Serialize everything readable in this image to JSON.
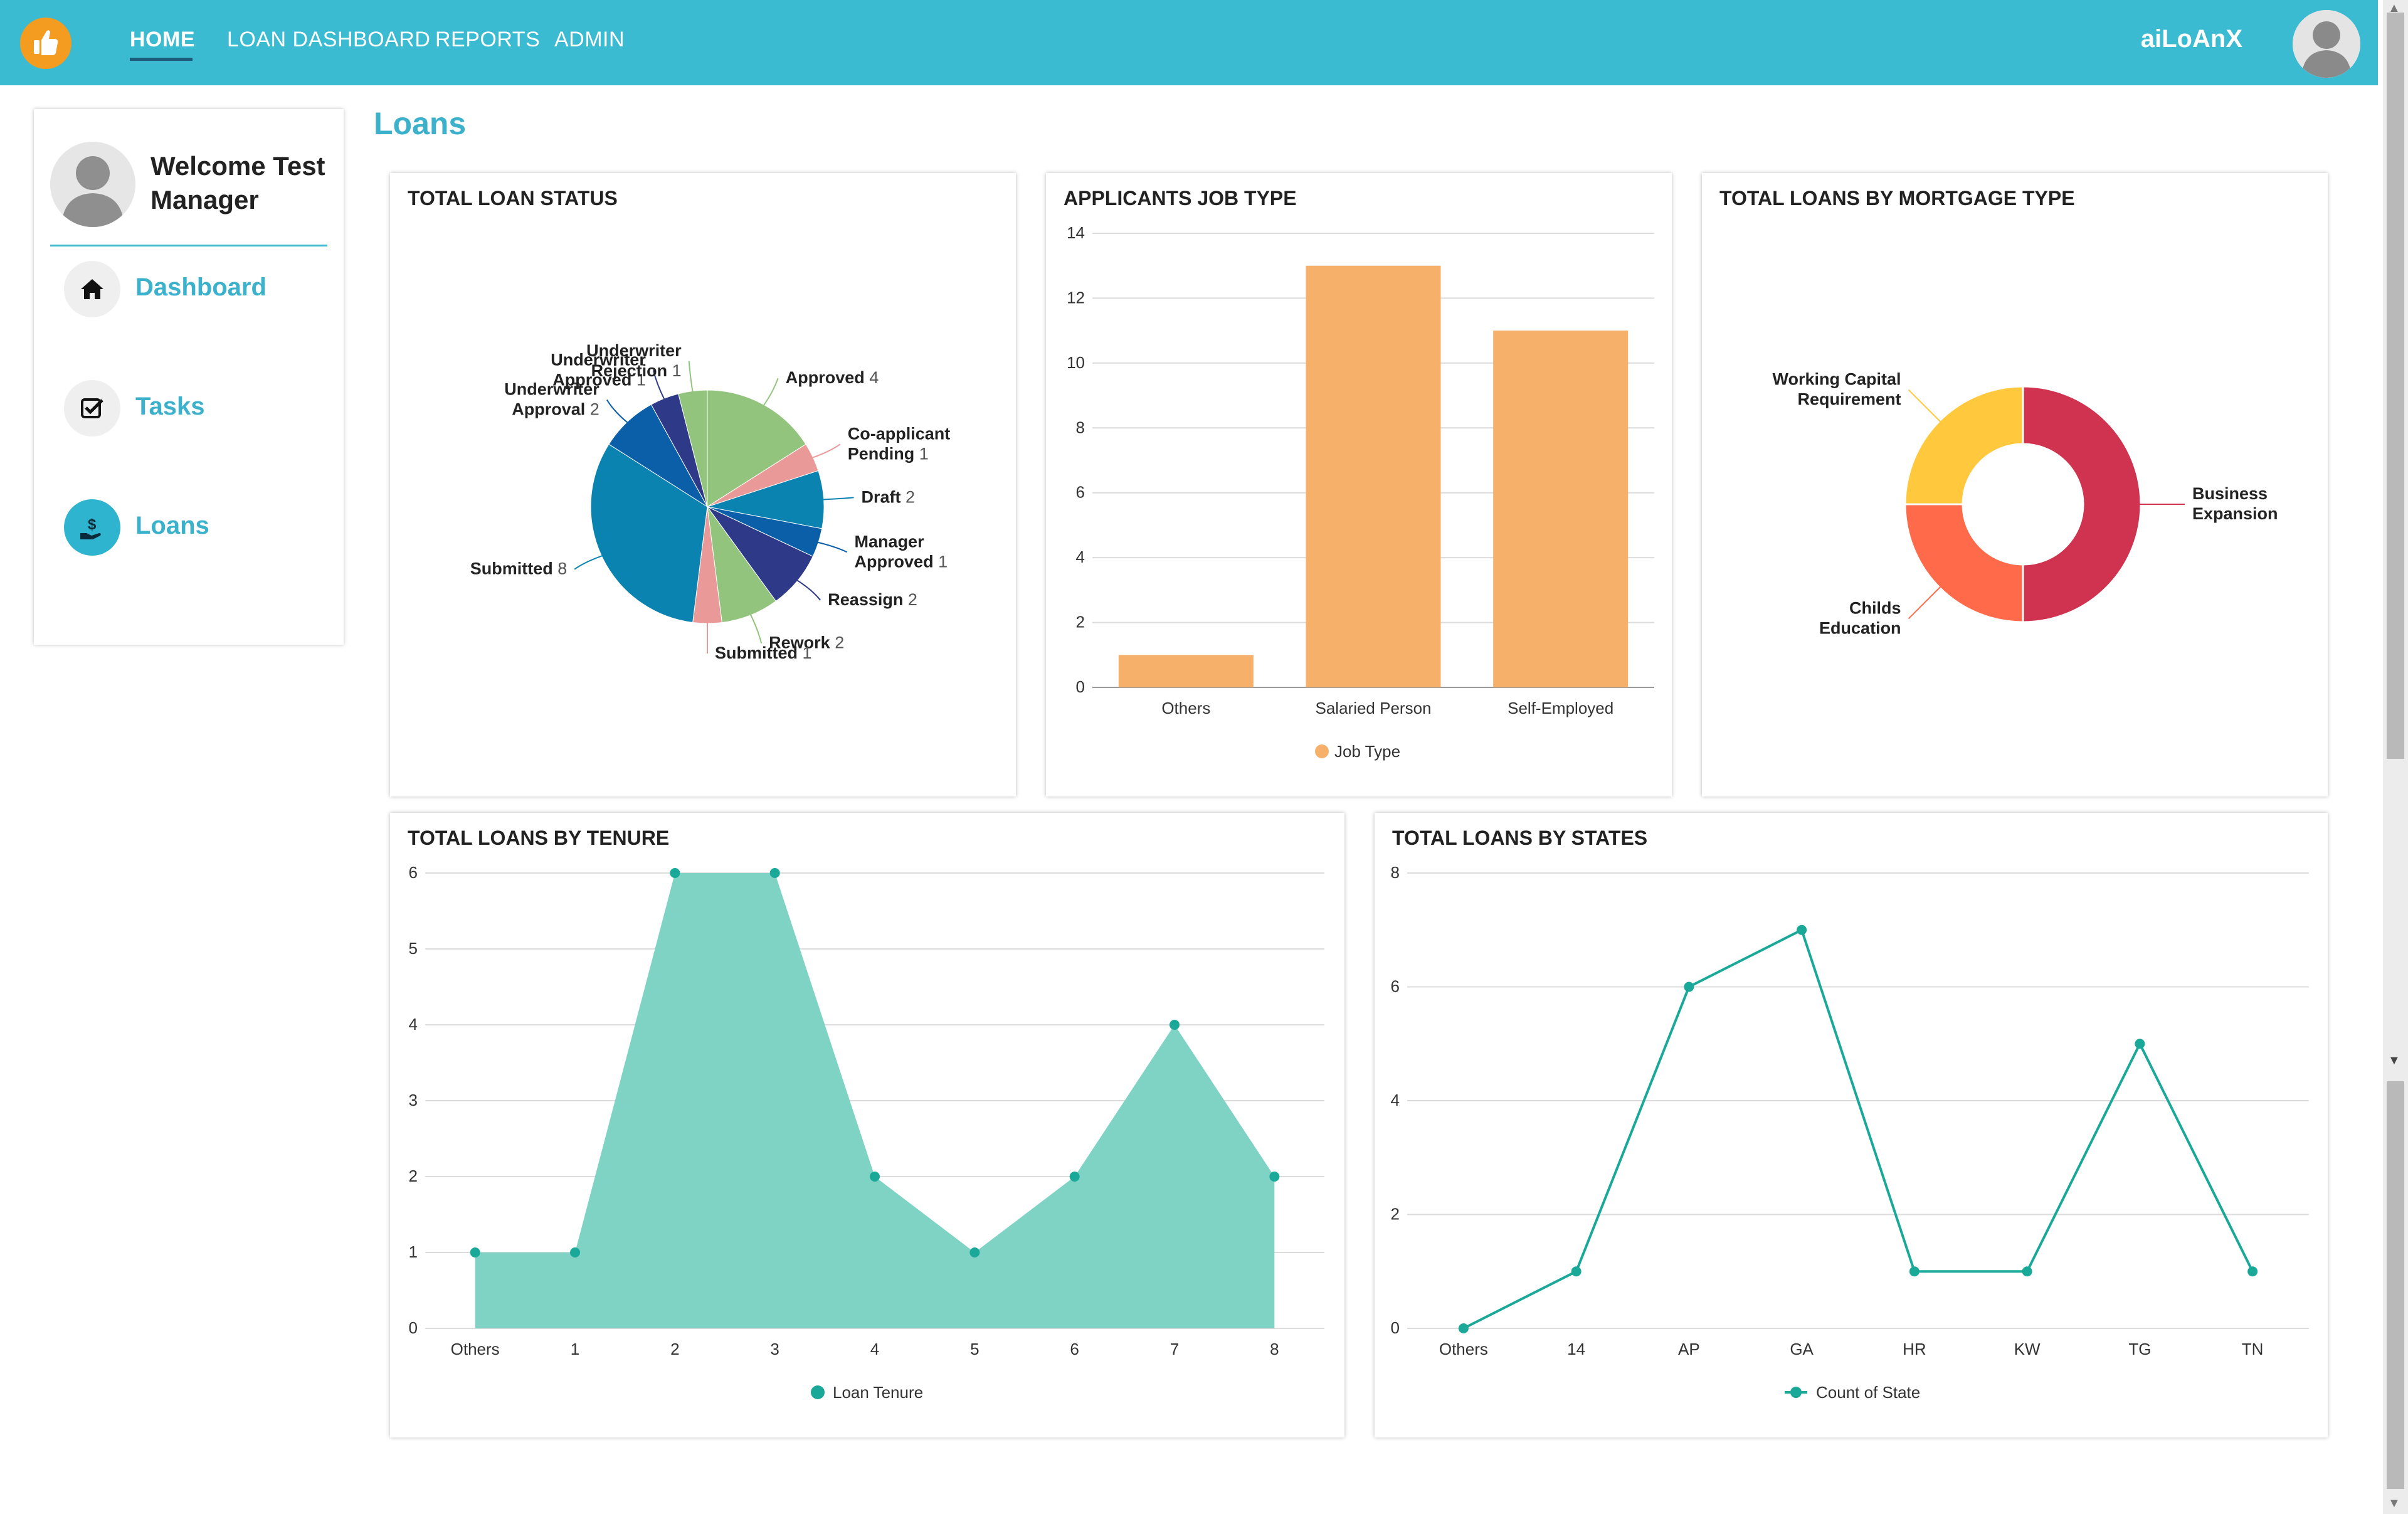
{
  "nav": {
    "items": [
      "HOME",
      "LOAN DASHBOARD",
      "REPORTS",
      "ADMIN"
    ],
    "brand": "aiLoAnX"
  },
  "sidebar": {
    "welcome": "Welcome Test Manager",
    "items": [
      {
        "label": "Dashboard",
        "icon": "home-icon"
      },
      {
        "label": "Tasks",
        "icon": "checkbox-icon"
      },
      {
        "label": "Loans",
        "icon": "hand-dollar-icon"
      }
    ]
  },
  "page": {
    "title": "Loans"
  },
  "colors": {
    "accent": "#3bbbd2",
    "logo": "#f39c1f",
    "teal": "#1aa999",
    "orange_bar": "#f6b06a"
  },
  "chart_data": [
    {
      "type": "pie",
      "title": "TOTAL LOAN STATUS",
      "slices": [
        {
          "label": "Approved",
          "value": 4,
          "color": "#93c47d"
        },
        {
          "label": "Co-applicant Pending",
          "value": 1,
          "color": "#ea9999"
        },
        {
          "label": "Draft",
          "value": 2,
          "color": "#0b83b0"
        },
        {
          "label": "Manager Approved",
          "value": 1,
          "color": "#0b5fa8"
        },
        {
          "label": "Reassign",
          "value": 2,
          "color": "#2e3a87"
        },
        {
          "label": "Rework",
          "value": 2,
          "color": "#93c47d"
        },
        {
          "label": "Submitted",
          "value": 1,
          "color": "#ea9999"
        },
        {
          "label": "Submitted",
          "value": 8,
          "color": "#0b83b0"
        },
        {
          "label": "Underwriter Approval",
          "value": 2,
          "color": "#0b5fa8"
        },
        {
          "label": "Underwriter Approved",
          "value": 1,
          "color": "#2e3a87"
        },
        {
          "label": "Underwriter Rejection",
          "value": 1,
          "color": "#93c47d"
        }
      ]
    },
    {
      "type": "bar",
      "title": "APPLICANTS JOB TYPE",
      "categories": [
        "Others",
        "Salaried Person",
        "Self-Employed"
      ],
      "series": [
        {
          "name": "Job Type",
          "values": [
            1,
            13,
            11
          ]
        }
      ],
      "ylim": [
        0,
        14
      ],
      "yticks": [
        0,
        2,
        4,
        6,
        8,
        10,
        12,
        14
      ],
      "grid": true,
      "legend": "bottom"
    },
    {
      "type": "pie",
      "subtype": "donut",
      "title": "TOTAL LOANS BY MORTGAGE TYPE",
      "slices": [
        {
          "label": "Business Expansion",
          "value": 50,
          "color": "#d0334f"
        },
        {
          "label": "Childs Education",
          "value": 25,
          "color": "#ff6b4a"
        },
        {
          "label": "Working Capital Requirement",
          "value": 25,
          "color": "#ffc83d"
        }
      ]
    },
    {
      "type": "area",
      "title": "TOTAL LOANS BY TENURE",
      "x": [
        "Others",
        "1",
        "2",
        "3",
        "4",
        "5",
        "6",
        "7",
        "8"
      ],
      "series": [
        {
          "name": "Loan Tenure",
          "values": [
            1,
            1,
            6,
            6,
            2,
            1,
            2,
            4,
            2
          ]
        }
      ],
      "ylim": [
        0,
        6
      ],
      "yticks": [
        0,
        1,
        2,
        3,
        4,
        5,
        6
      ],
      "grid": true,
      "legend": "bottom"
    },
    {
      "type": "line",
      "title": "TOTAL LOANS BY STATES",
      "x": [
        "Others",
        "14",
        "AP",
        "GA",
        "HR",
        "KW",
        "TG",
        "TN"
      ],
      "series": [
        {
          "name": "Count of State",
          "values": [
            0,
            1,
            6,
            7,
            1,
            1,
            5,
            1
          ]
        }
      ],
      "ylim": [
        0,
        8
      ],
      "yticks": [
        0,
        2,
        4,
        6,
        8
      ],
      "grid": true,
      "legend": "bottom"
    }
  ]
}
